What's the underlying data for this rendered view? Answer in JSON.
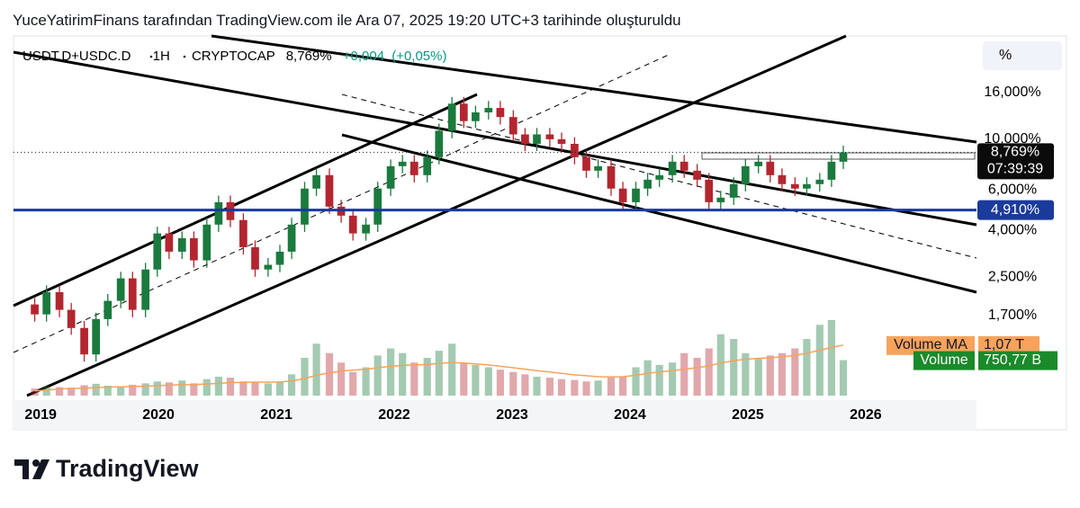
{
  "header": {
    "text": "YuceYatirimFinans tarafından TradingView.com ile Ara 07, 2025 19:20 UTC+3 tarihinde oluşturuldu"
  },
  "chart_data": {
    "type": "candlestick",
    "symbol": "USDT.D+USDC.D",
    "interval": "1H",
    "exchange": "CRYPTOCAP",
    "last_price": {
      "value": 8.769,
      "label": "8,769%"
    },
    "change": {
      "value": 0.004,
      "label": "+0,004"
    },
    "change_pct": {
      "value": 0.05,
      "label": "(+0,05%)"
    },
    "countdown": "07:39:39",
    "scale_unit": "%",
    "log_scale": true,
    "up_color": "#1b7a3e",
    "down_color": "#b3262f",
    "x": [
      2018.95,
      2019.05,
      2019.16,
      2019.26,
      2019.37,
      2019.47,
      2019.57,
      2019.68,
      2019.78,
      2019.89,
      2019.99,
      2020.09,
      2020.2,
      2020.3,
      2020.41,
      2020.51,
      2020.61,
      2020.72,
      2020.82,
      2020.93,
      2021.03,
      2021.13,
      2021.24,
      2021.34,
      2021.45,
      2021.55,
      2021.65,
      2021.76,
      2021.86,
      2021.97,
      2022.07,
      2022.17,
      2022.28,
      2022.38,
      2022.49,
      2022.59,
      2022.69,
      2022.8,
      2022.9,
      2023.01,
      2023.11,
      2023.21,
      2023.32,
      2023.42,
      2023.53,
      2023.63,
      2023.73,
      2023.84,
      2023.94,
      2024.05,
      2024.15,
      2024.25,
      2024.36,
      2024.46,
      2024.57,
      2024.67,
      2024.77,
      2024.88,
      2024.98,
      2025.09,
      2025.19,
      2025.29,
      2025.4,
      2025.5,
      2025.61,
      2025.71,
      2025.81
    ],
    "open": [
      1.9,
      1.72,
      2.15,
      1.8,
      1.5,
      1.15,
      1.64,
      1.97,
      2.47,
      1.8,
      2.7,
      3.88,
      3.23,
      3.7,
      2.96,
      4.24,
      5.31,
      4.44,
      3.38,
      2.7,
      2.83,
      3.23,
      4.24,
      6.09,
      6.97,
      5.08,
      4.64,
      3.88,
      4.24,
      6.09,
      7.63,
      7.98,
      6.97,
      8.35,
      10.9,
      14.3,
      12.0,
      13.1,
      13.7,
      12.5,
      10.5,
      9.55,
      10.5,
      10.0,
      9.55,
      8.35,
      7.29,
      7.63,
      6.09,
      5.31,
      6.09,
      6.66,
      6.97,
      7.98,
      7.29,
      6.66,
      5.31,
      5.56,
      6.37,
      7.63,
      7.98,
      6.97,
      6.37,
      6.09,
      6.37,
      6.66,
      7.98
    ],
    "high": [
      2.03,
      2.3,
      2.3,
      1.93,
      1.61,
      1.75,
      2.11,
      2.64,
      2.64,
      2.89,
      4.15,
      4.15,
      3.96,
      3.96,
      4.54,
      5.68,
      5.68,
      4.75,
      3.62,
      3.03,
      3.46,
      4.54,
      6.52,
      7.46,
      7.46,
      5.44,
      4.96,
      4.54,
      6.52,
      8.16,
      8.54,
      8.54,
      8.93,
      11.7,
      15.3,
      15.3,
      14.0,
      14.7,
      14.7,
      13.4,
      11.2,
      11.2,
      11.2,
      10.7,
      10.2,
      8.93,
      8.16,
      8.16,
      6.52,
      6.52,
      7.13,
      7.46,
      8.54,
      8.54,
      7.8,
      7.13,
      5.95,
      6.82,
      8.16,
      8.54,
      8.54,
      7.46,
      6.82,
      6.82,
      7.13,
      8.54,
      9.38
    ],
    "low": [
      1.6,
      1.6,
      1.67,
      1.4,
      1.07,
      1.07,
      1.53,
      1.83,
      1.67,
      1.67,
      2.51,
      3.0,
      3.0,
      2.75,
      2.75,
      3.94,
      4.13,
      3.14,
      2.51,
      2.51,
      2.63,
      3.0,
      3.94,
      5.66,
      4.72,
      4.32,
      3.61,
      3.61,
      3.94,
      5.66,
      7.1,
      6.48,
      6.48,
      7.77,
      10.1,
      11.2,
      11.2,
      12.2,
      11.6,
      9.77,
      8.88,
      8.88,
      9.3,
      8.88,
      7.77,
      6.78,
      6.78,
      5.66,
      4.94,
      4.94,
      5.66,
      6.19,
      6.48,
      6.78,
      6.19,
      4.94,
      4.94,
      5.17,
      5.92,
      7.1,
      6.48,
      5.92,
      5.66,
      5.66,
      5.92,
      6.19,
      7.42
    ],
    "close": [
      1.72,
      2.15,
      1.8,
      1.5,
      1.15,
      1.64,
      1.97,
      2.47,
      1.8,
      2.7,
      3.88,
      3.23,
      3.7,
      2.96,
      4.24,
      5.31,
      4.44,
      3.38,
      2.7,
      2.83,
      3.23,
      4.24,
      6.09,
      6.97,
      5.08,
      4.64,
      3.88,
      4.24,
      6.09,
      7.63,
      7.98,
      6.97,
      8.35,
      10.9,
      14.3,
      12.0,
      13.1,
      13.7,
      12.5,
      10.5,
      9.55,
      10.5,
      10.0,
      9.55,
      8.35,
      7.29,
      7.63,
      6.09,
      5.31,
      6.09,
      6.66,
      6.97,
      7.98,
      7.29,
      6.66,
      5.31,
      5.56,
      6.37,
      7.63,
      7.98,
      6.97,
      6.37,
      6.09,
      6.37,
      6.66,
      7.98,
      8.77
    ],
    "volume": {
      "name": "Volume",
      "color": "#1a8a2a",
      "values": [
        150,
        200,
        180,
        170,
        220,
        250,
        210,
        200,
        230,
        260,
        300,
        280,
        320,
        260,
        350,
        400,
        380,
        300,
        280,
        260,
        300,
        450,
        800,
        1100,
        900,
        700,
        500,
        600,
        850,
        1000,
        900,
        700,
        800,
        950,
        1100,
        700,
        650,
        600,
        550,
        500,
        450,
        400,
        380,
        350,
        330,
        300,
        320,
        380,
        400,
        600,
        750,
        650,
        700,
        900,
        800,
        1000,
        1300,
        1200,
        900,
        800,
        850,
        900,
        1000,
        1200,
        1500,
        1600,
        750.77
      ],
      "last": {
        "value": 750.77,
        "label": "750,77 B"
      }
    },
    "volume_ma": {
      "name": "Volume MA",
      "color": "#f7a35c",
      "values": [
        100,
        120,
        140,
        150,
        160,
        170,
        180,
        185,
        190,
        200,
        210,
        220,
        230,
        235,
        245,
        260,
        275,
        280,
        285,
        285,
        290,
        310,
        360,
        430,
        480,
        520,
        540,
        560,
        590,
        620,
        640,
        650,
        660,
        680,
        700,
        690,
        670,
        650,
        620,
        590,
        560,
        530,
        500,
        470,
        440,
        420,
        400,
        395,
        400,
        430,
        470,
        500,
        530,
        560,
        590,
        630,
        690,
        740,
        770,
        790,
        800,
        820,
        850,
        900,
        960,
        1020,
        1070
      ],
      "last": {
        "value": 1070,
        "label": "1,07 T"
      }
    },
    "vlim": [
      0,
      2000
    ],
    "level": {
      "value": 4.91,
      "label": "4,910%",
      "color": "#1a3a9c"
    },
    "xlim": [
      2018.77,
      2026.94
    ],
    "xticks": [
      2019,
      2020,
      2021,
      2022,
      2023,
      2024,
      2025,
      2026
    ],
    "ylim": [
      0.76,
      27
    ],
    "yticks": [
      {
        "value": 1.7,
        "label": "1,700%"
      },
      {
        "value": 2.5,
        "label": "2,500%"
      },
      {
        "value": 4,
        "label": "4,000%"
      },
      {
        "value": 6,
        "label": "6,000%"
      },
      {
        "value": 10,
        "label": "10,000%"
      },
      {
        "value": 16,
        "label": "16,000%"
      }
    ]
  },
  "footer": {
    "brand": "TradingView"
  }
}
